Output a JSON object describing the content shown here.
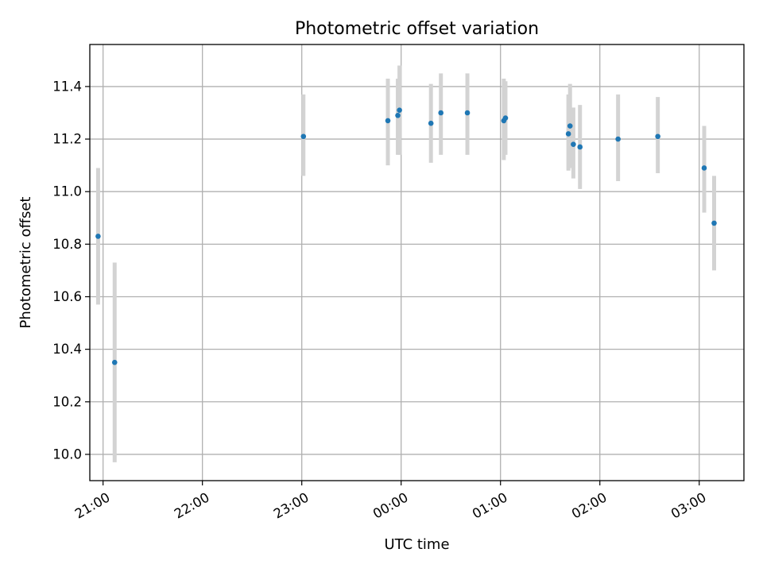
{
  "chart_data": {
    "type": "scatter",
    "title": "Photometric offset variation",
    "xlabel": "UTC time",
    "ylabel": "Photometric offset",
    "x_tick_labels": [
      "21:00",
      "22:00",
      "23:00",
      "00:00",
      "01:00",
      "02:00",
      "03:00"
    ],
    "y_tick_labels": [
      "10.0",
      "10.2",
      "10.4",
      "10.6",
      "10.8",
      "11.0",
      "11.2",
      "11.4"
    ],
    "xlim": [
      "20:52",
      "03:27"
    ],
    "ylim": [
      9.9,
      11.56
    ],
    "grid": true,
    "colors": {
      "point": "#1f77b4",
      "errorbar": "#d3d3d3",
      "grid": "#b0b0b0"
    },
    "series": [
      {
        "points": [
          {
            "x": "20:57",
            "y": 10.83,
            "yerr_low": 10.57,
            "yerr_high": 11.09
          },
          {
            "x": "21:07",
            "y": 10.35,
            "yerr_low": 9.97,
            "yerr_high": 10.73
          },
          {
            "x": "23:01",
            "y": 11.21,
            "yerr_low": 11.06,
            "yerr_high": 11.37
          },
          {
            "x": "23:52",
            "y": 11.27,
            "yerr_low": 11.1,
            "yerr_high": 11.43
          },
          {
            "x": "23:58",
            "y": 11.29,
            "yerr_low": 11.14,
            "yerr_high": 11.43
          },
          {
            "x": "23:59",
            "y": 11.31,
            "yerr_low": 11.14,
            "yerr_high": 11.48
          },
          {
            "x": "00:18",
            "y": 11.26,
            "yerr_low": 11.11,
            "yerr_high": 11.41
          },
          {
            "x": "00:24",
            "y": 11.3,
            "yerr_low": 11.14,
            "yerr_high": 11.45
          },
          {
            "x": "00:40",
            "y": 11.3,
            "yerr_low": 11.14,
            "yerr_high": 11.45
          },
          {
            "x": "01:02",
            "y": 11.27,
            "yerr_low": 11.12,
            "yerr_high": 11.43
          },
          {
            "x": "01:03",
            "y": 11.28,
            "yerr_low": 11.14,
            "yerr_high": 11.42
          },
          {
            "x": "01:41",
            "y": 11.22,
            "yerr_low": 11.08,
            "yerr_high": 11.37
          },
          {
            "x": "01:42",
            "y": 11.25,
            "yerr_low": 11.09,
            "yerr_high": 11.41
          },
          {
            "x": "01:44",
            "y": 11.18,
            "yerr_low": 11.05,
            "yerr_high": 11.32
          },
          {
            "x": "01:48",
            "y": 11.17,
            "yerr_low": 11.01,
            "yerr_high": 11.33
          },
          {
            "x": "02:11",
            "y": 11.2,
            "yerr_low": 11.04,
            "yerr_high": 11.37
          },
          {
            "x": "02:35",
            "y": 11.21,
            "yerr_low": 11.07,
            "yerr_high": 11.36
          },
          {
            "x": "03:03",
            "y": 11.09,
            "yerr_low": 10.92,
            "yerr_high": 11.25
          },
          {
            "x": "03:09",
            "y": 10.88,
            "yerr_low": 10.7,
            "yerr_high": 11.06
          }
        ]
      }
    ]
  }
}
